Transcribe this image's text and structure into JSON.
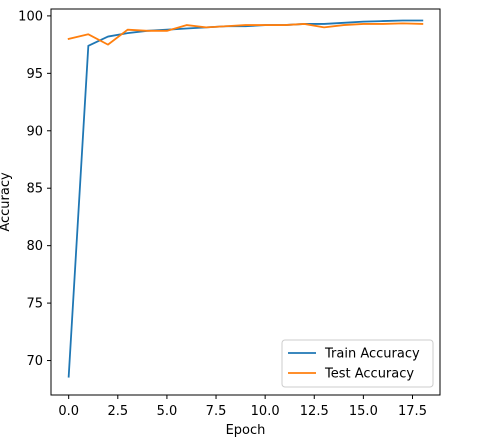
{
  "chart_data": {
    "type": "line",
    "title": "",
    "xlabel": "Epoch",
    "ylabel": "Accuracy",
    "xlim": [
      -0.9,
      18.9
    ],
    "ylim": [
      67.0,
      100.6
    ],
    "x_ticks": [
      0.0,
      2.5,
      5.0,
      7.5,
      10.0,
      12.5,
      15.0,
      17.5
    ],
    "x_tick_labels": [
      "0.0",
      "2.5",
      "5.0",
      "7.5",
      "10.0",
      "12.5",
      "15.0",
      "17.5"
    ],
    "y_ticks": [
      70,
      75,
      80,
      85,
      90,
      95,
      100
    ],
    "y_tick_labels": [
      "70",
      "75",
      "80",
      "85",
      "90",
      "95",
      "100"
    ],
    "grid": false,
    "legend_position": "lower-right",
    "x": [
      0,
      1,
      2,
      3,
      4,
      5,
      6,
      7,
      8,
      9,
      10,
      11,
      12,
      13,
      14,
      15,
      16,
      17,
      18
    ],
    "series": [
      {
        "name": "Train Accuracy",
        "color": "#1f77b4",
        "values": [
          68.6,
          97.4,
          98.2,
          98.5,
          98.7,
          98.8,
          98.9,
          99.0,
          99.1,
          99.1,
          99.2,
          99.2,
          99.3,
          99.3,
          99.4,
          99.5,
          99.55,
          99.6,
          99.6
        ]
      },
      {
        "name": "Test Accuracy",
        "color": "#ff7f0e",
        "values": [
          98.0,
          98.4,
          97.5,
          98.8,
          98.7,
          98.7,
          99.2,
          99.0,
          99.1,
          99.2,
          99.2,
          99.2,
          99.3,
          99.0,
          99.2,
          99.3,
          99.3,
          99.35,
          99.3
        ]
      }
    ]
  }
}
